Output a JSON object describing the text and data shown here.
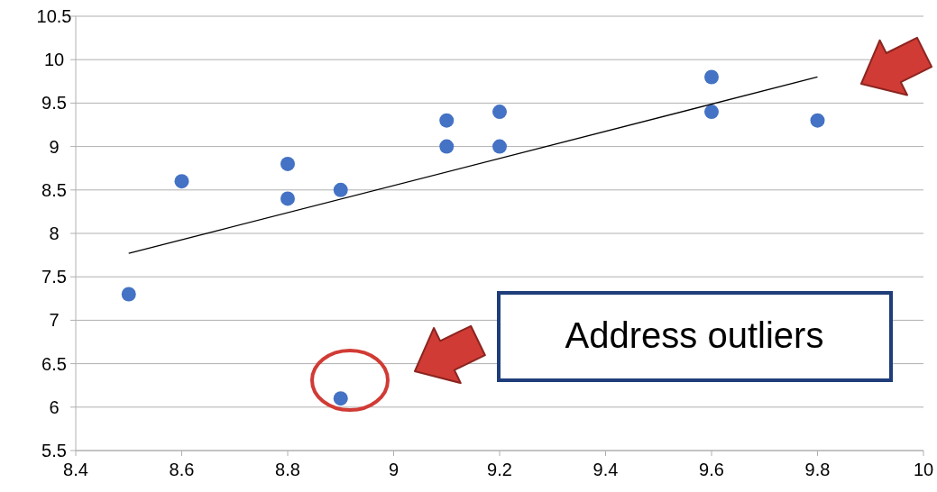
{
  "chart_data": {
    "type": "scatter",
    "x": [
      8.5,
      8.6,
      8.8,
      8.8,
      8.9,
      8.9,
      9.1,
      9.1,
      9.2,
      9.2,
      9.6,
      9.6,
      9.8
    ],
    "series": [
      {
        "color": "#4472c4",
        "marker": "circle",
        "values": [
          7.3,
          8.6,
          8.8,
          8.4,
          8.5,
          6.1,
          9.3,
          9.0,
          9.4,
          9.0,
          9.8,
          9.4,
          9.3
        ]
      },
      {
        "type": "line",
        "color": "#000000",
        "x": [
          8.5,
          9.8
        ],
        "values": [
          7.77,
          9.8
        ]
      }
    ],
    "xlim": [
      8.4,
      10
    ],
    "xticks": [
      8.4,
      8.6,
      8.8,
      9,
      9.2,
      9.4,
      9.6,
      9.8,
      10
    ],
    "ylim": [
      5.5,
      10.5
    ],
    "yticks": [
      5.5,
      6,
      6.5,
      7,
      7.5,
      8,
      8.5,
      9,
      9.5,
      10,
      10.5
    ],
    "grid": "y",
    "annotations": [
      "Address outliers"
    ]
  }
}
